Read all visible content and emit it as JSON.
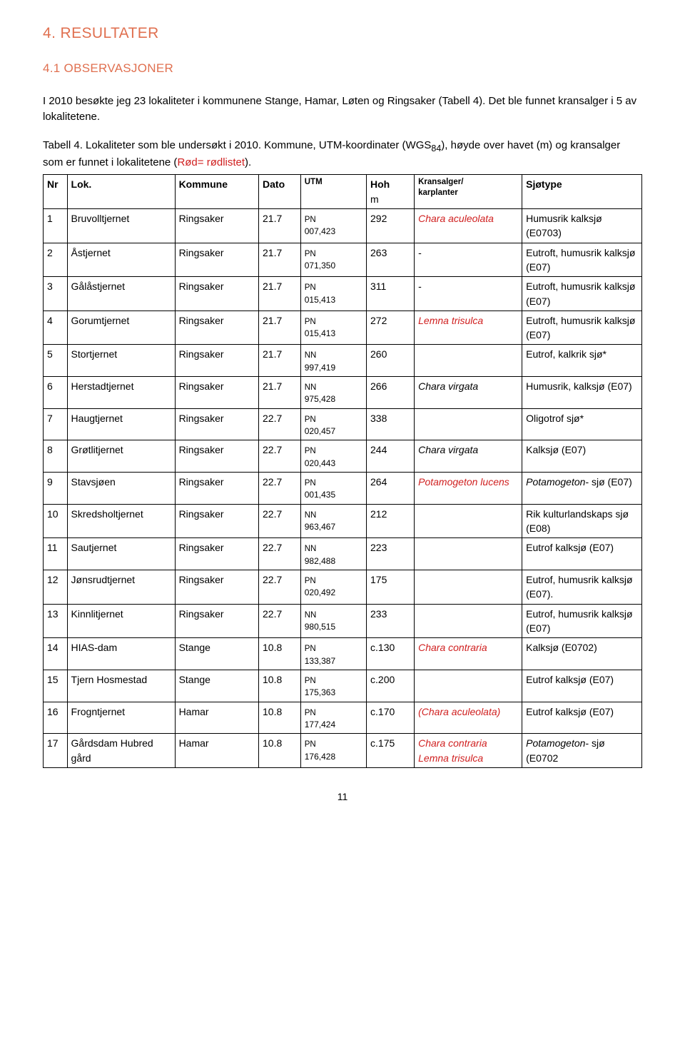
{
  "section_title": "4. RESULTATER",
  "subsection_title": "4.1 OBSERVASJONER",
  "intro": "I 2010 besøkte jeg 23 lokaliteter i kommunene Stange, Hamar, Løten og Ringsaker (Tabell 4). Det ble funnet kransalger i 5 av lokalitetene.",
  "caption_prefix": "Tabell 4. Lokaliteter som ble undersøkt i 2010. Kommune, UTM-koordinater (WGS",
  "caption_sub": "84",
  "caption_mid": "), høyde over havet (m) og kransalger som er funnet i lokalitetene (",
  "caption_red": "Rød= rødlistet",
  "caption_end": ").",
  "headers": {
    "nr": "Nr",
    "lok": "Lok.",
    "kommune": "Kommune",
    "dato": "Dato",
    "utm": "UTM",
    "hoh": "Hoh",
    "hoh_unit": "m",
    "kransalger_a": "Kransalger/",
    "kransalger_b": "karplanter",
    "sjotype": "Sjøtype"
  },
  "rows": [
    {
      "nr": "1",
      "lok": "Bruvolltjernet",
      "kom": "Ringsaker",
      "dato": "21.7",
      "utm_a": "PN",
      "utm_b": "007,423",
      "hoh": "292",
      "kran": "Chara aculeolata",
      "kran_red": true,
      "kran_ital": true,
      "sjo": "Humusrik kalksjø (E0703)"
    },
    {
      "nr": "2",
      "lok": "Åstjernet",
      "kom": "Ringsaker",
      "dato": "21.7",
      "utm_a": "PN",
      "utm_b": "071,350",
      "hoh": "263",
      "kran": "-",
      "sjo": "Eutroft, humusrik kalksjø (E07)"
    },
    {
      "nr": "3",
      "lok": "Gålåstjernet",
      "kom": "Ringsaker",
      "dato": "21.7",
      "utm_a": "PN",
      "utm_b": "015,413",
      "hoh": "311",
      "kran": "-",
      "sjo": "Eutroft, humusrik kalksjø (E07)"
    },
    {
      "nr": "4",
      "lok": "Gorumtjernet",
      "kom": "Ringsaker",
      "dato": "21.7",
      "utm_a": "PN",
      "utm_b": "015,413",
      "hoh": "272",
      "kran": "Lemna trisulca",
      "kran_red": true,
      "kran_ital": true,
      "sjo": "Eutroft, humusrik kalksjø (E07)"
    },
    {
      "nr": "5",
      "lok": "Stortjernet",
      "kom": "Ringsaker",
      "dato": "21.7",
      "utm_a": "NN",
      "utm_b": "997,419",
      "hoh": "260",
      "kran": "",
      "sjo": "Eutrof, kalkrik sjø*"
    },
    {
      "nr": "6",
      "lok": "Herstadtjernet",
      "kom": "Ringsaker",
      "dato": "21.7",
      "utm_a": "NN",
      "utm_b": "975,428",
      "hoh": "266",
      "kran": "Chara virgata",
      "kran_ital": true,
      "sjo": "Humusrik, kalksjø (E07)"
    },
    {
      "nr": "7",
      "lok": "Haugtjernet",
      "kom": "Ringsaker",
      "dato": "22.7",
      "utm_a": "PN",
      "utm_b": "020,457",
      "hoh": "338",
      "kran": "",
      "sjo": "Oligotrof sjø*"
    },
    {
      "nr": "8",
      "lok": "Grøtlitjernet",
      "kom": "Ringsaker",
      "dato": "22.7",
      "utm_a": "PN",
      "utm_b": "020,443",
      "hoh": "244",
      "kran": "Chara virgata",
      "kran_ital": true,
      "sjo": "Kalksjø (E07)"
    },
    {
      "nr": "9",
      "lok": "Stavsjøen",
      "kom": "Ringsaker",
      "dato": "22.7",
      "utm_a": "PN",
      "utm_b": "001,435",
      "hoh": "264",
      "kran": "Potamogeton lucens",
      "kran_red": true,
      "kran_ital": true,
      "sjo_prefix": "Potamogeton",
      "sjo_prefix_ital": true,
      "sjo_rest": "- sjø (E07)"
    },
    {
      "nr": "10",
      "lok": "Skredsholtjernet",
      "kom": "Ringsaker",
      "dato": "22.7",
      "utm_a": "NN",
      "utm_b": "963,467",
      "hoh": "212",
      "kran": "",
      "sjo": "Rik kulturlandskaps sjø (E08)"
    },
    {
      "nr": "11",
      "lok": "Sautjernet",
      "kom": "Ringsaker",
      "dato": "22.7",
      "utm_a": "NN",
      "utm_b": "982,488",
      "hoh": "223",
      "kran": "",
      "sjo": "Eutrof kalksjø (E07)"
    },
    {
      "nr": "12",
      "lok": "Jønsrudtjernet",
      "kom": "Ringsaker",
      "dato": "22.7",
      "utm_a": "PN",
      "utm_b": "020,492",
      "hoh": "175",
      "kran": "",
      "sjo": "Eutrof, humusrik kalksjø (E07)."
    },
    {
      "nr": "13",
      "lok": "Kinnlitjernet",
      "kom": "Ringsaker",
      "dato": "22.7",
      "utm_a": "NN",
      "utm_b": "980,515",
      "hoh": "233",
      "kran": "",
      "sjo": "Eutrof, humusrik kalksjø (E07)"
    },
    {
      "nr": "14",
      "lok": "HIAS-dam",
      "kom": "Stange",
      "dato": "10.8",
      "utm_a": "PN",
      "utm_b": "133,387",
      "hoh": "c.130",
      "kran": "Chara contraria",
      "kran_red": true,
      "kran_ital": true,
      "sjo": "Kalksjø (E0702)"
    },
    {
      "nr": "15",
      "lok": "Tjern Hosmestad",
      "kom": "Stange",
      "dato": "10.8",
      "utm_a": "PN",
      "utm_b": "175,363",
      "hoh": "c.200",
      "kran": "",
      "sjo": "Eutrof kalksjø (E07)"
    },
    {
      "nr": "16",
      "lok": "Frogntjernet",
      "kom": "Hamar",
      "dato": "10.8",
      "utm_a": "PN",
      "utm_b": "177,424",
      "hoh": "c.170",
      "kran": "(Chara aculeolata)",
      "kran_red": true,
      "kran_ital": true,
      "sjo": "Eutrof kalksjø (E07)"
    },
    {
      "nr": "17",
      "lok": "Gårdsdam Hubred gård",
      "kom": "Hamar",
      "dato": "10.8",
      "utm_a": "PN",
      "utm_b": "176,428",
      "hoh": "c.175",
      "kran_multi": [
        {
          "t": "Chara contraria",
          "ital": true
        },
        {
          "t": "Lemna trisulca",
          "ital": true
        }
      ],
      "kran_red": true,
      "sjo_prefix": "Potamogeton",
      "sjo_prefix_ital": true,
      "sjo_rest": "- sjø (E0702"
    }
  ],
  "page_number": "11"
}
